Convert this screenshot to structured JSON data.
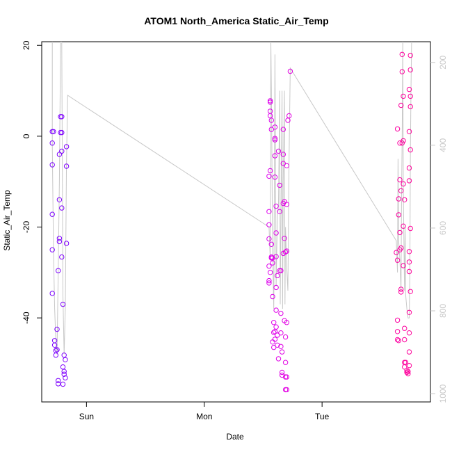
{
  "chart_data": {
    "type": "scatter",
    "title": "ATOM1 North_America Static_Air_Temp",
    "xlabel": "Date",
    "ylabel": "Static_Air_Temp",
    "x_ticks": [
      "Sun",
      "Mon",
      "Tue"
    ],
    "x_tick_days": [
      1,
      2,
      3
    ],
    "x_range_days": [
      0.62,
      3.92
    ],
    "y_ticks": [
      "-40",
      "-20",
      "0",
      "20"
    ],
    "y_tick_values": [
      -40,
      -20,
      0,
      20
    ],
    "ylim": [
      -58.5,
      20.8
    ],
    "right_axis": {
      "label": "",
      "ticks": [
        "200",
        "400",
        "600",
        "800",
        "1000"
      ],
      "tick_values": [
        200,
        400,
        600,
        800,
        1000
      ],
      "range": [
        1020,
        150
      ],
      "color": "#c8c8c8"
    },
    "grid": false,
    "legend": "none",
    "colors": {
      "points_start": "#7a00ff",
      "points_mid": "#dd00ee",
      "points_end": "#ff0099",
      "line": "#c8c8c8"
    },
    "series": [
      {
        "values": [
          {
            "x": 0.71,
            "y": 1.0
          },
          {
            "x": 0.71,
            "y": -1.5
          },
          {
            "x": 0.71,
            "y": -6.3
          },
          {
            "x": 0.71,
            "y": -17.2
          },
          {
            "x": 0.71,
            "y": -25.0
          },
          {
            "x": 0.71,
            "y": -34.6
          },
          {
            "x": 0.72,
            "y": 1.0
          },
          {
            "x": 0.73,
            "y": -45.0
          },
          {
            "x": 0.73,
            "y": -46.0
          },
          {
            "x": 0.74,
            "y": -47.2
          },
          {
            "x": 0.74,
            "y": -48.2
          },
          {
            "x": 0.75,
            "y": -47.0
          },
          {
            "x": 0.75,
            "y": -42.5
          },
          {
            "x": 0.76,
            "y": -53.8
          },
          {
            "x": 0.76,
            "y": -54.5
          },
          {
            "x": 0.77,
            "y": -22.5
          },
          {
            "x": 0.77,
            "y": -23.2
          },
          {
            "x": 0.76,
            "y": -29.6
          },
          {
            "x": 0.77,
            "y": -14.0
          },
          {
            "x": 0.77,
            "y": -4.0
          },
          {
            "x": 0.78,
            "y": 4.3
          },
          {
            "x": 0.78,
            "y": 0.8
          },
          {
            "x": 0.79,
            "y": 4.3
          },
          {
            "x": 0.79,
            "y": 0.8
          },
          {
            "x": 0.79,
            "y": -3.3
          },
          {
            "x": 0.79,
            "y": -15.8
          },
          {
            "x": 0.79,
            "y": -26.6
          },
          {
            "x": 0.8,
            "y": -37.0
          },
          {
            "x": 0.81,
            "y": -48.2
          },
          {
            "x": 0.8,
            "y": -50.8
          },
          {
            "x": 0.81,
            "y": -51.8
          },
          {
            "x": 0.81,
            "y": -52.4
          },
          {
            "x": 0.8,
            "y": -54.6
          },
          {
            "x": 0.82,
            "y": -53.2
          },
          {
            "x": 0.82,
            "y": -49.2
          },
          {
            "x": 0.83,
            "y": -23.6
          },
          {
            "x": 0.83,
            "y": -6.6
          },
          {
            "x": 0.83,
            "y": -2.3
          },
          {
            "x": 2.56,
            "y": 7.5
          },
          {
            "x": 2.56,
            "y": 7.8
          },
          {
            "x": 2.56,
            "y": 5.5
          },
          {
            "x": 2.56,
            "y": 4.5
          },
          {
            "x": 2.57,
            "y": 3.5
          },
          {
            "x": 2.57,
            "y": 1.5
          },
          {
            "x": 2.55,
            "y": -8.8
          },
          {
            "x": 2.56,
            "y": -7.6
          },
          {
            "x": 2.55,
            "y": -16.6
          },
          {
            "x": 2.55,
            "y": -19.5
          },
          {
            "x": 2.55,
            "y": -22.6
          },
          {
            "x": 2.55,
            "y": -28.6
          },
          {
            "x": 2.56,
            "y": -30.0
          },
          {
            "x": 2.55,
            "y": -31.8
          },
          {
            "x": 2.55,
            "y": -32.3
          },
          {
            "x": 2.57,
            "y": -23.8
          },
          {
            "x": 2.57,
            "y": -26.6
          },
          {
            "x": 2.57,
            "y": -26.8
          },
          {
            "x": 2.58,
            "y": -26.8
          },
          {
            "x": 2.58,
            "y": -27.9
          },
          {
            "x": 2.58,
            "y": -35.3
          },
          {
            "x": 2.59,
            "y": -41.0
          },
          {
            "x": 2.59,
            "y": -43.2
          },
          {
            "x": 2.58,
            "y": -45.3
          },
          {
            "x": 2.59,
            "y": -46.5
          },
          {
            "x": 2.6,
            "y": -44.7
          },
          {
            "x": 2.6,
            "y": -43.0
          },
          {
            "x": 2.61,
            "y": -42.0
          },
          {
            "x": 2.61,
            "y": -38.3
          },
          {
            "x": 2.6,
            "y": -0.5
          },
          {
            "x": 2.6,
            "y": -0.8
          },
          {
            "x": 2.6,
            "y": 2.0
          },
          {
            "x": 2.6,
            "y": -4.3
          },
          {
            "x": 2.6,
            "y": -9.0
          },
          {
            "x": 2.61,
            "y": -15.4
          },
          {
            "x": 2.61,
            "y": -21.3
          },
          {
            "x": 2.61,
            "y": -26.5
          },
          {
            "x": 2.61,
            "y": -33.3
          },
          {
            "x": 2.62,
            "y": -30.7
          },
          {
            "x": 2.62,
            "y": -43.8
          },
          {
            "x": 2.62,
            "y": -46.0
          },
          {
            "x": 2.63,
            "y": -49.0
          },
          {
            "x": 2.63,
            "y": -3.3
          },
          {
            "x": 2.64,
            "y": -10.8
          },
          {
            "x": 2.64,
            "y": -16.6
          },
          {
            "x": 2.64,
            "y": -29.6
          },
          {
            "x": 2.65,
            "y": -29.6
          },
          {
            "x": 2.65,
            "y": -39.0
          },
          {
            "x": 2.65,
            "y": -43.3
          },
          {
            "x": 2.65,
            "y": -46.3
          },
          {
            "x": 2.66,
            "y": -47.5
          },
          {
            "x": 2.66,
            "y": -52.0
          },
          {
            "x": 2.66,
            "y": -52.6
          },
          {
            "x": 2.67,
            "y": 1.5
          },
          {
            "x": 2.67,
            "y": -4.0
          },
          {
            "x": 2.67,
            "y": -6.0
          },
          {
            "x": 2.67,
            "y": -14.8
          },
          {
            "x": 2.67,
            "y": -25.8
          },
          {
            "x": 2.68,
            "y": -14.4
          },
          {
            "x": 2.68,
            "y": -22.5
          },
          {
            "x": 2.68,
            "y": -40.6
          },
          {
            "x": 2.69,
            "y": -25.5
          },
          {
            "x": 2.69,
            "y": -44.2
          },
          {
            "x": 2.69,
            "y": -49.8
          },
          {
            "x": 2.69,
            "y": -53.0
          },
          {
            "x": 2.69,
            "y": -55.8
          },
          {
            "x": 2.7,
            "y": -55.8
          },
          {
            "x": 2.7,
            "y": -53.0
          },
          {
            "x": 2.7,
            "y": -41.0
          },
          {
            "x": 2.7,
            "y": -25.3
          },
          {
            "x": 2.7,
            "y": -15.0
          },
          {
            "x": 2.7,
            "y": -6.5
          },
          {
            "x": 2.71,
            "y": 3.5
          },
          {
            "x": 2.72,
            "y": 4.5
          },
          {
            "x": 2.73,
            "y": 14.3
          },
          {
            "x": 3.63,
            "y": -25.6
          },
          {
            "x": 3.64,
            "y": -27.3
          },
          {
            "x": 3.64,
            "y": -40.5
          },
          {
            "x": 3.64,
            "y": -43.0
          },
          {
            "x": 3.64,
            "y": -44.8
          },
          {
            "x": 3.65,
            "y": -45.0
          },
          {
            "x": 3.64,
            "y": 1.6
          },
          {
            "x": 3.65,
            "y": -13.8
          },
          {
            "x": 3.65,
            "y": -17.3
          },
          {
            "x": 3.66,
            "y": -21.2
          },
          {
            "x": 3.66,
            "y": -9.6
          },
          {
            "x": 3.66,
            "y": -1.5
          },
          {
            "x": 3.66,
            "y": -25.0
          },
          {
            "x": 3.67,
            "y": -24.6
          },
          {
            "x": 3.67,
            "y": -33.7
          },
          {
            "x": 3.67,
            "y": -34.3
          },
          {
            "x": 3.67,
            "y": -12.0
          },
          {
            "x": 3.68,
            "y": -1.5
          },
          {
            "x": 3.67,
            "y": 6.8
          },
          {
            "x": 3.68,
            "y": 14.2
          },
          {
            "x": 3.68,
            "y": 18.0
          },
          {
            "x": 3.69,
            "y": 8.8
          },
          {
            "x": 3.69,
            "y": -1.0
          },
          {
            "x": 3.69,
            "y": -10.5
          },
          {
            "x": 3.69,
            "y": -19.8
          },
          {
            "x": 3.69,
            "y": -28.5
          },
          {
            "x": 3.7,
            "y": -50.8
          },
          {
            "x": 3.7,
            "y": -49.8
          },
          {
            "x": 3.7,
            "y": -42.3
          },
          {
            "x": 3.7,
            "y": -44.8
          },
          {
            "x": 3.7,
            "y": -14.0
          },
          {
            "x": 3.71,
            "y": -49.8
          },
          {
            "x": 3.72,
            "y": -51.6
          },
          {
            "x": 3.72,
            "y": -52.0
          },
          {
            "x": 3.73,
            "y": -51.8
          },
          {
            "x": 3.73,
            "y": -52.3
          },
          {
            "x": 3.74,
            "y": -50.5
          },
          {
            "x": 3.74,
            "y": -47.5
          },
          {
            "x": 3.74,
            "y": -43.3
          },
          {
            "x": 3.74,
            "y": -38.8
          },
          {
            "x": 3.75,
            "y": -34.2
          },
          {
            "x": 3.74,
            "y": -29.8
          },
          {
            "x": 3.74,
            "y": -27.7
          },
          {
            "x": 3.74,
            "y": -25.4
          },
          {
            "x": 3.75,
            "y": -20.3
          },
          {
            "x": 3.74,
            "y": -9.8
          },
          {
            "x": 3.74,
            "y": -7.0
          },
          {
            "x": 3.75,
            "y": -3.0
          },
          {
            "x": 3.74,
            "y": 1.0
          },
          {
            "x": 3.75,
            "y": 6.5
          },
          {
            "x": 3.75,
            "y": 8.8
          },
          {
            "x": 3.74,
            "y": 10.3
          },
          {
            "x": 3.75,
            "y": 14.6
          },
          {
            "x": 3.75,
            "y": 17.8
          }
        ]
      },
      {
        "values": [
          {
            "x": 0.71,
            "y": 20.8
          },
          {
            "x": 0.71,
            "y": -2
          },
          {
            "x": 0.72,
            "y": -25
          },
          {
            "x": 0.73,
            "y": -38
          },
          {
            "x": 0.74,
            "y": -45
          },
          {
            "x": 0.75,
            "y": -48
          },
          {
            "x": 0.76,
            "y": -30
          },
          {
            "x": 0.77,
            "y": -10
          },
          {
            "x": 0.78,
            "y": 20.8
          },
          {
            "x": 0.79,
            "y": 20.8
          },
          {
            "x": 0.8,
            "y": -35
          },
          {
            "x": 0.81,
            "y": -48
          },
          {
            "x": 0.82,
            "y": -38
          },
          {
            "x": 0.83,
            "y": -6
          },
          {
            "x": 0.84,
            "y": 9
          },
          {
            "x": 2.55,
            "y": -20
          },
          {
            "x": 2.56,
            "y": -27
          },
          {
            "x": 2.565,
            "y": 20.8
          },
          {
            "x": 2.57,
            "y": 10
          },
          {
            "x": 2.58,
            "y": -25
          },
          {
            "x": 2.59,
            "y": -38
          },
          {
            "x": 2.6,
            "y": 18
          },
          {
            "x": 2.61,
            "y": -33
          },
          {
            "x": 2.62,
            "y": -18
          },
          {
            "x": 2.63,
            "y": -15
          },
          {
            "x": 2.64,
            "y": 10
          },
          {
            "x": 2.645,
            "y": -37
          },
          {
            "x": 2.65,
            "y": -20
          },
          {
            "x": 2.66,
            "y": 10
          },
          {
            "x": 2.665,
            "y": -38
          },
          {
            "x": 2.67,
            "y": -10
          },
          {
            "x": 2.68,
            "y": 10
          },
          {
            "x": 2.685,
            "y": -37
          },
          {
            "x": 2.69,
            "y": -20
          },
          {
            "x": 2.7,
            "y": -29
          },
          {
            "x": 2.71,
            "y": -34
          },
          {
            "x": 2.72,
            "y": -5
          },
          {
            "x": 2.73,
            "y": 15
          },
          {
            "x": 3.63,
            "y": -23
          },
          {
            "x": 3.64,
            "y": -30
          },
          {
            "x": 3.645,
            "y": -5
          },
          {
            "x": 3.65,
            "y": -23
          },
          {
            "x": 3.66,
            "y": -27
          },
          {
            "x": 3.67,
            "y": -34
          },
          {
            "x": 3.675,
            "y": -12
          },
          {
            "x": 3.68,
            "y": -1
          },
          {
            "x": 3.685,
            "y": 20.8
          },
          {
            "x": 3.69,
            "y": -12
          },
          {
            "x": 3.7,
            "y": -34
          },
          {
            "x": 3.705,
            "y": -20
          },
          {
            "x": 3.71,
            "y": -35
          },
          {
            "x": 3.72,
            "y": -38
          },
          {
            "x": 3.73,
            "y": -40
          },
          {
            "x": 3.74,
            "y": -40
          },
          {
            "x": 3.745,
            "y": -30
          },
          {
            "x": 3.75,
            "y": -3
          },
          {
            "x": 3.755,
            "y": 10
          },
          {
            "x": 3.76,
            "y": 20.8
          }
        ]
      }
    ]
  }
}
